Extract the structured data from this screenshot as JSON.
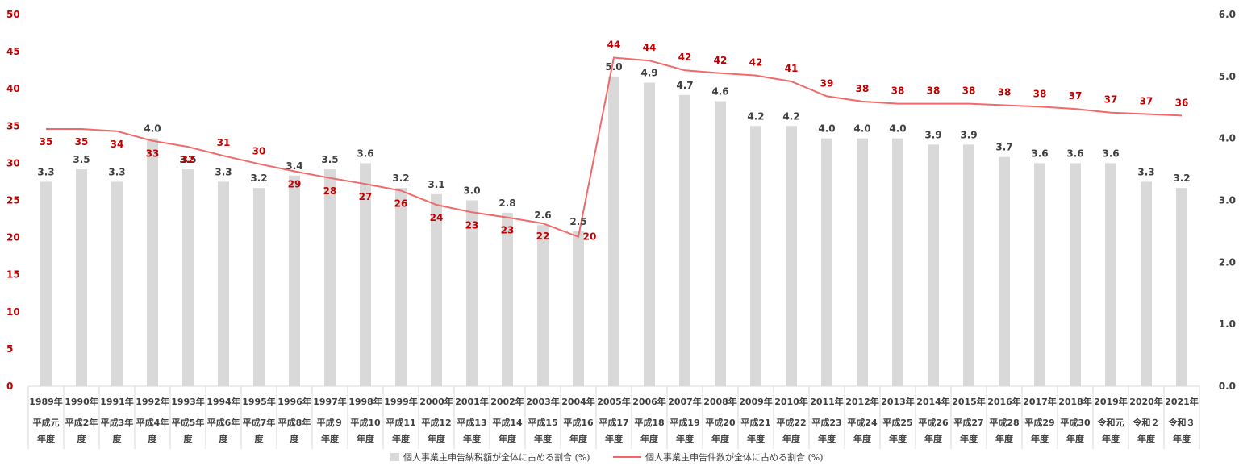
{
  "chart_data": {
    "type": "bar",
    "title": "",
    "categories": [
      {
        "year": "1989年",
        "era": [
          "平成元",
          "年度"
        ]
      },
      {
        "year": "1990年",
        "era": [
          "平成2年",
          "度"
        ]
      },
      {
        "year": "1991年",
        "era": [
          "平成3年",
          "度"
        ]
      },
      {
        "year": "1992年",
        "era": [
          "平成4年",
          "度"
        ]
      },
      {
        "year": "1993年",
        "era": [
          "平成5年",
          "度"
        ]
      },
      {
        "year": "1994年",
        "era": [
          "平成6年",
          "度"
        ]
      },
      {
        "year": "1995年",
        "era": [
          "平成7年",
          "度"
        ]
      },
      {
        "year": "1996年",
        "era": [
          "平成8年",
          "度"
        ]
      },
      {
        "year": "1997年",
        "era": [
          "平成９",
          "年度"
        ]
      },
      {
        "year": "1998年",
        "era": [
          "平成10",
          "年度"
        ]
      },
      {
        "year": "1999年",
        "era": [
          "平成11",
          "年度"
        ]
      },
      {
        "year": "2000年",
        "era": [
          "平成12",
          "年度"
        ]
      },
      {
        "year": "2001年",
        "era": [
          "平成13",
          "年度"
        ]
      },
      {
        "year": "2002年",
        "era": [
          "平成14",
          "年度"
        ]
      },
      {
        "year": "2003年",
        "era": [
          "平成15",
          "年度"
        ]
      },
      {
        "year": "2004年",
        "era": [
          "平成16",
          "年度"
        ]
      },
      {
        "year": "2005年",
        "era": [
          "平成17",
          "年度"
        ]
      },
      {
        "year": "2006年",
        "era": [
          "平成18",
          "年度"
        ]
      },
      {
        "year": "2007年",
        "era": [
          "平成19",
          "年度"
        ]
      },
      {
        "year": "2008年",
        "era": [
          "平成20",
          "年度"
        ]
      },
      {
        "year": "2009年",
        "era": [
          "平成21",
          "年度"
        ]
      },
      {
        "year": "2010年",
        "era": [
          "平成22",
          "年度"
        ]
      },
      {
        "year": "2011年",
        "era": [
          "平成23",
          "年度"
        ]
      },
      {
        "year": "2012年",
        "era": [
          "平成24",
          "年度"
        ]
      },
      {
        "year": "2013年",
        "era": [
          "平成25",
          "年度"
        ]
      },
      {
        "year": "2014年",
        "era": [
          "平成26",
          "年度"
        ]
      },
      {
        "year": "2015年",
        "era": [
          "平成27",
          "年度"
        ]
      },
      {
        "year": "2016年",
        "era": [
          "平成28",
          "年度"
        ]
      },
      {
        "year": "2017年",
        "era": [
          "平成29",
          "年度"
        ]
      },
      {
        "year": "2018年",
        "era": [
          "平成30",
          "年度"
        ]
      },
      {
        "year": "2019年",
        "era": [
          "令和元",
          "年度"
        ]
      },
      {
        "year": "2020年",
        "era": [
          "令和２",
          "年度"
        ]
      },
      {
        "year": "2021年",
        "era": [
          "令和３",
          "年度"
        ]
      }
    ],
    "series": [
      {
        "name": "個人事業主申告納税額が全体に占める割合 (%)",
        "type": "bar",
        "axis": "right",
        "color": "#d9d9d9",
        "values": [
          3.3,
          3.5,
          3.3,
          4.0,
          3.5,
          3.3,
          3.2,
          3.4,
          3.5,
          3.6,
          3.2,
          3.1,
          3.0,
          2.8,
          2.6,
          2.5,
          5.0,
          4.9,
          4.7,
          4.6,
          4.2,
          4.2,
          4.0,
          4.0,
          4.0,
          3.9,
          3.9,
          3.7,
          3.6,
          3.6,
          3.6,
          3.3,
          3.2
        ],
        "labels": [
          "3.3",
          "3.5",
          "3.3",
          "4.0",
          "3.5",
          "3.3",
          "3.2",
          "3.4",
          "3.5",
          "3.6",
          "3.2",
          "3.1",
          "3.0",
          "2.8",
          "2.6",
          "2.5",
          "5.0",
          "4.9",
          "4.7",
          "4.6",
          "4.2",
          "4.2",
          "4.0",
          "4.0",
          "4.0",
          "3.9",
          "3.9",
          "3.7",
          "3.6",
          "3.6",
          "3.6",
          "3.3",
          "3.2"
        ]
      },
      {
        "name": "個人事業主申告件数が全体に占める割合 (%)",
        "type": "line",
        "axis": "left",
        "color": "#f06a6a",
        "label_color": "#c00000",
        "values": [
          34.6,
          34.6,
          34.3,
          33.0,
          32.2,
          31.0,
          29.9,
          28.9,
          28.0,
          27.2,
          26.3,
          24.4,
          23.4,
          22.7,
          21.9,
          20.1,
          44.2,
          43.8,
          42.5,
          42.1,
          41.8,
          41.0,
          39.0,
          38.3,
          38.0,
          38.0,
          38.0,
          37.8,
          37.6,
          37.3,
          36.8,
          36.6,
          36.4
        ],
        "labels": [
          "35",
          "35",
          "34",
          "33",
          "32",
          "31",
          "30",
          "29",
          "28",
          "27",
          "26",
          "24",
          "23",
          "23",
          "22",
          "20",
          "44",
          "44",
          "42",
          "42",
          "42",
          "41",
          "39",
          "38",
          "38",
          "38",
          "38",
          "38",
          "38",
          "37",
          "37",
          "37",
          "36"
        ]
      }
    ],
    "y_left": {
      "min": 0,
      "max": 50,
      "ticks": [
        "0",
        "5",
        "10",
        "15",
        "20",
        "25",
        "30",
        "35",
        "40",
        "45",
        "50"
      ],
      "color": "#c00000"
    },
    "y_right": {
      "min": 0,
      "max": 6,
      "ticks": [
        "0.0",
        "1.0",
        "2.0",
        "3.0",
        "4.0",
        "5.0",
        "6.0"
      ],
      "color": "#404040"
    },
    "grid": false,
    "legend_position": "bottom"
  }
}
